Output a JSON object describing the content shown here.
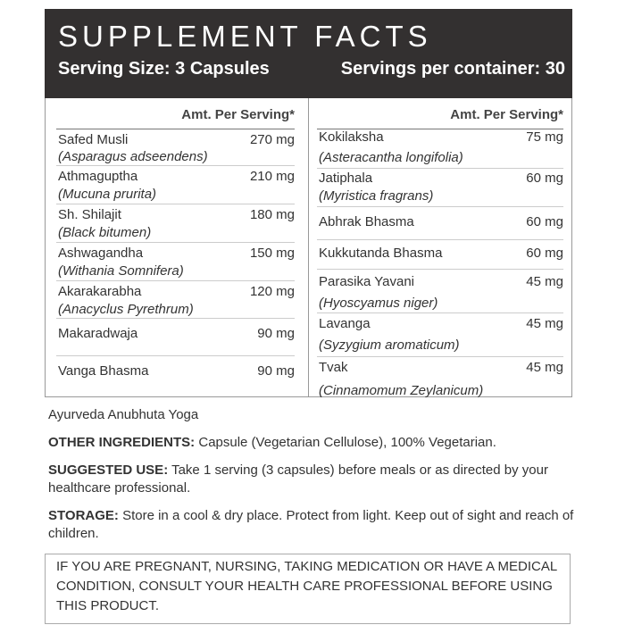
{
  "header": {
    "title": "SUPPLEMENT FACTS",
    "serving_size": "Serving Size: 3 Capsules",
    "servings_per_container": "Servings per container: 30"
  },
  "table": {
    "columns": [
      {
        "heading": "Amt. Per Serving*",
        "rows": [
          {
            "name": "Safed Musli",
            "latin": "(Asparagus adseendens)",
            "amount": "270 mg"
          },
          {
            "name": "Athmaguptha",
            "latin": "(Mucuna prurita)",
            "amount": "210 mg"
          },
          {
            "name": "Sh. Shilajit",
            "latin": "(Black bitumen)",
            "amount": "180 mg"
          },
          {
            "name": "Ashwagandha",
            "latin": "(Withania Somnifera)",
            "amount": "150 mg"
          },
          {
            "name": "Akarakarabha",
            "latin": "(Anacyclus Pyrethrum)",
            "amount": "120 mg"
          },
          {
            "name": "Makaradwaja",
            "amount": "90 mg"
          },
          {
            "name": "Vanga Bhasma",
            "amount": "90 mg"
          }
        ]
      },
      {
        "heading": "Amt. Per Serving*",
        "rows": [
          {
            "name": "Kokilaksha",
            "latin": "(Asteracantha longifolia)",
            "amount": "75 mg"
          },
          {
            "name": "Jatiphala",
            "latin": "(Myristica fragrans)",
            "amount": "60 mg"
          },
          {
            "name": "Abhrak Bhasma",
            "amount": "60 mg"
          },
          {
            "name": "Kukkutanda Bhasma",
            "amount": "60 mg"
          },
          {
            "name": "Parasika Yavani",
            "latin": "(Hyoscyamus niger)",
            "amount": "45 mg"
          },
          {
            "name": "Lavanga",
            "latin": "(Syzygium aromaticum)",
            "amount": "45 mg"
          },
          {
            "name": "Tvak",
            "latin": "(Cinnamomum Zeylanicum)",
            "amount": "45 mg"
          }
        ]
      }
    ]
  },
  "footer": {
    "formula": "Ayurveda Anubhuta Yoga",
    "sections": [
      {
        "label": "OTHER INGREDIENTS:",
        "text": "Capsule (Vegetarian Cellulose), 100% Vegetarian."
      },
      {
        "label": "SUGGESTED USE:",
        "text": "Take 1 serving (3 capsules) before meals or as directed by your healthcare professional."
      },
      {
        "label": "STORAGE:",
        "text": "Store in a cool & dry place. Protect from light. Keep out of sight and reach of children."
      }
    ],
    "warning": "IF YOU ARE PREGNANT, NURSING, TAKING MEDICATION OR HAVE A MEDICAL CONDITION, CONSULT YOUR HEALTH CARE PROFESSIONAL BEFORE USING THIS PRODUCT."
  }
}
